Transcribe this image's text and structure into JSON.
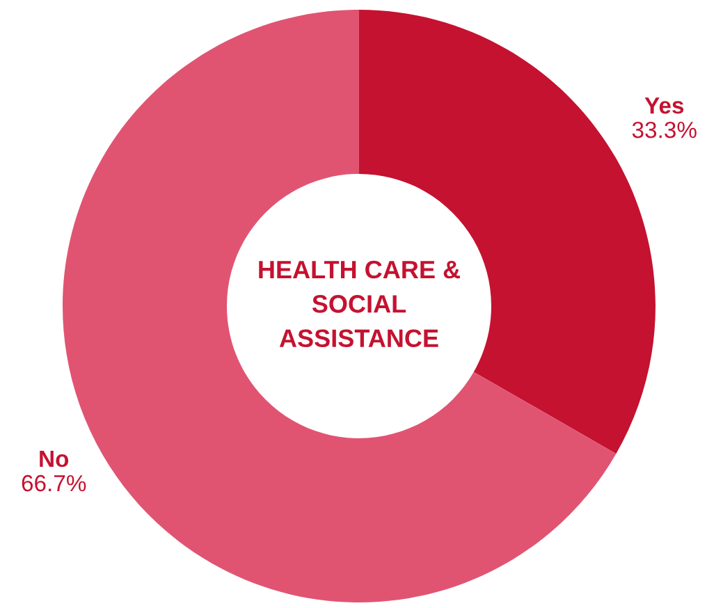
{
  "chart_data": {
    "type": "donut",
    "title": "HEALTH CARE &\nSOCIAL\nASSISTANCE",
    "categories": [
      "Yes",
      "No"
    ],
    "values": [
      33.3,
      66.7
    ],
    "value_labels": [
      "33.3%",
      "66.7%"
    ],
    "colors": [
      "#c41230",
      "#e05472"
    ]
  }
}
